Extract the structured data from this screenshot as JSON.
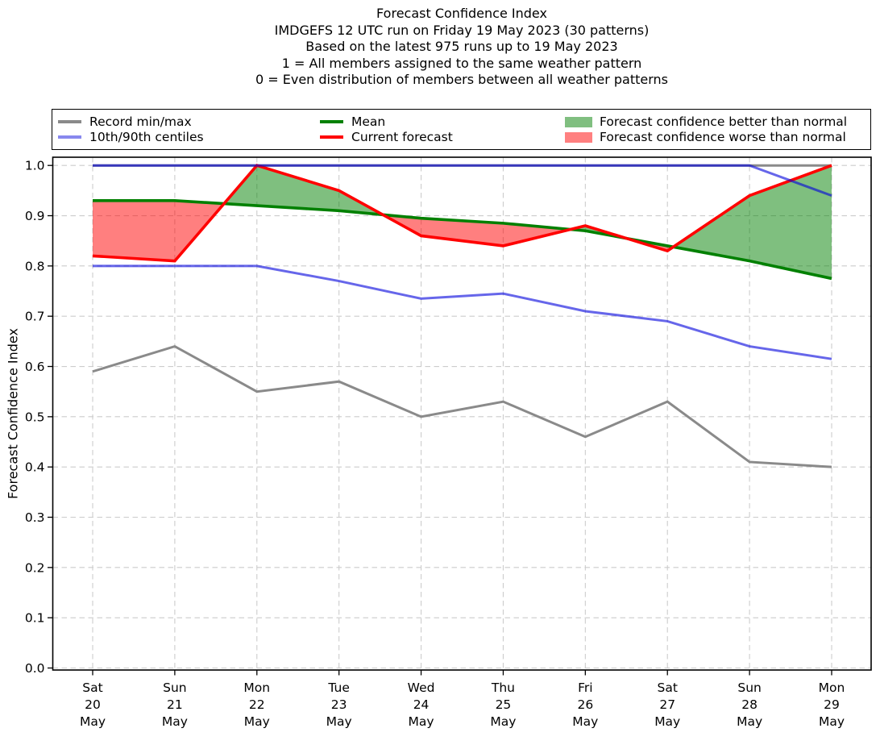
{
  "title_block": {
    "line1": "Forecast Confidence Index",
    "line2": "IMDGEFS 12 UTC run on Friday 19 May 2023 (30 patterns)",
    "line3": "Based on the latest 975 runs up to 19 May 2023",
    "line4": "1 = All members assigned to the same weather pattern",
    "line5": "0 = Even distribution of members between all weather patterns"
  },
  "legend": {
    "items": [
      {
        "label": "Record min/max",
        "swatch": "line",
        "color": "#8a8a8a"
      },
      {
        "label": "10th/90th centiles",
        "swatch": "line",
        "color": "#8888ee"
      },
      {
        "label": "Mean",
        "swatch": "line",
        "color": "#008000"
      },
      {
        "label": "Current forecast",
        "swatch": "line",
        "color": "#ff0000"
      },
      {
        "label": "Forecast confidence better than normal",
        "swatch": "patch",
        "color": "#80bf80"
      },
      {
        "label": "Forecast confidence worse than normal",
        "swatch": "patch",
        "color": "#ff8080"
      }
    ]
  },
  "axis": {
    "ylabel": "Forecast Confidence Index",
    "ytick_labels": [
      "0.0",
      "0.1",
      "0.2",
      "0.3",
      "0.4",
      "0.5",
      "0.6",
      "0.7",
      "0.8",
      "0.9",
      "1.0"
    ],
    "grid_color": "#cccccc",
    "frame_color": "#000000"
  },
  "chart_data": {
    "type": "line",
    "title": "Forecast Confidence Index",
    "xlabel": "",
    "ylabel": "Forecast Confidence Index",
    "ylim": [
      0.0,
      1.0
    ],
    "grid": true,
    "legend_position": "top",
    "x_categories": [
      {
        "dow": "Sat",
        "day": "20",
        "month": "May"
      },
      {
        "dow": "Sun",
        "day": "21",
        "month": "May"
      },
      {
        "dow": "Mon",
        "day": "22",
        "month": "May"
      },
      {
        "dow": "Tue",
        "day": "23",
        "month": "May"
      },
      {
        "dow": "Wed",
        "day": "24",
        "month": "May"
      },
      {
        "dow": "Thu",
        "day": "25",
        "month": "May"
      },
      {
        "dow": "Fri",
        "day": "26",
        "month": "May"
      },
      {
        "dow": "Sat",
        "day": "27",
        "month": "May"
      },
      {
        "dow": "Sun",
        "day": "28",
        "month": "May"
      },
      {
        "dow": "Mon",
        "day": "29",
        "month": "May"
      }
    ],
    "series": [
      {
        "name": "Record max",
        "legend_label": "Record min/max",
        "color": "#8a8a8a",
        "width": 3,
        "layer": 1,
        "values": [
          1.0,
          1.0,
          1.0,
          1.0,
          1.0,
          1.0,
          1.0,
          1.0,
          1.0,
          1.0
        ]
      },
      {
        "name": "Record min",
        "legend_label": "Record min/max",
        "color": "#8a8a8a",
        "width": 3,
        "layer": 1,
        "values": [
          0.59,
          0.64,
          0.55,
          0.57,
          0.5,
          0.53,
          0.46,
          0.53,
          0.41,
          0.4
        ]
      },
      {
        "name": "Mean",
        "legend_label": "Mean",
        "color": "#008000",
        "width": 3.6,
        "layer": 3,
        "values": [
          0.93,
          0.93,
          0.92,
          0.91,
          0.895,
          0.885,
          0.87,
          0.84,
          0.81,
          0.775
        ]
      },
      {
        "name": "Current forecast",
        "legend_label": "Current forecast",
        "color": "#ff0000",
        "width": 3.6,
        "layer": 4,
        "values": [
          0.82,
          0.81,
          1.0,
          0.95,
          0.86,
          0.84,
          0.88,
          0.83,
          0.94,
          1.0
        ]
      },
      {
        "name": "90th centile",
        "legend_label": "10th/90th centiles",
        "color": "rgba(0,0,220,0.6)",
        "width": 3,
        "layer": 5,
        "values": [
          1.0,
          1.0,
          1.0,
          1.0,
          1.0,
          1.0,
          1.0,
          1.0,
          1.0,
          0.94
        ]
      },
      {
        "name": "10th centile",
        "legend_label": "10th/90th centiles",
        "color": "rgba(0,0,220,0.6)",
        "width": 3,
        "layer": 5,
        "values": [
          0.8,
          0.8,
          0.8,
          0.77,
          0.735,
          0.745,
          0.71,
          0.69,
          0.64,
          0.615
        ]
      }
    ],
    "fill_between": {
      "upper": "Current forecast",
      "baseline": "Mean",
      "above_color": "rgba(0,128,0,0.5)",
      "below_color": "rgba(255,0,0,0.5)",
      "above_meaning": "Forecast confidence better than normal",
      "below_meaning": "Forecast confidence worse than normal"
    }
  }
}
